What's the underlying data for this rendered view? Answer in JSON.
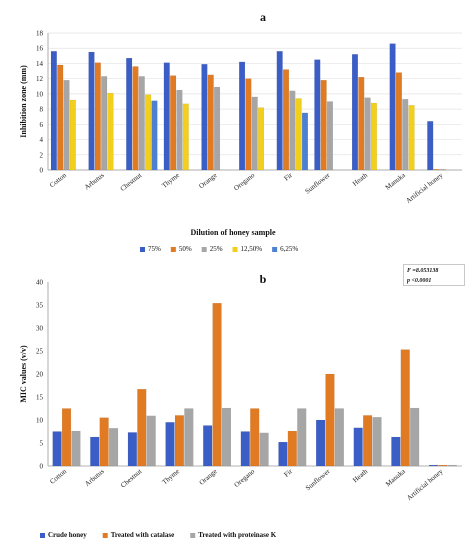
{
  "chart_data": [
    {
      "type": "bar",
      "panel_label": "a",
      "title": "",
      "xlabel": "Dilution of honey sample",
      "ylabel": "Inhibition zone (mm)",
      "ylim": [
        0,
        18
      ],
      "yticks": [
        0,
        2,
        4,
        6,
        8,
        10,
        12,
        14,
        16,
        18
      ],
      "grid": true,
      "legend_position": "bottom",
      "categories": [
        "Cotton",
        "Arbutus",
        "Chestnut",
        "Thyme",
        "Orange",
        "Oregano",
        "Fir",
        "Sunflower",
        "Heath",
        "Manuka",
        "Artificial honey"
      ],
      "series": [
        {
          "name": "75%",
          "color": "#3b5ec6",
          "values": [
            15.6,
            15.5,
            14.7,
            14.1,
            13.9,
            14.2,
            15.6,
            14.5,
            15.2,
            16.6,
            6.4
          ]
        },
        {
          "name": "50%",
          "color": "#e07b24",
          "values": [
            13.8,
            14.1,
            13.6,
            12.4,
            12.5,
            12.0,
            13.2,
            11.8,
            12.2,
            12.8,
            0.1
          ]
        },
        {
          "name": "25%",
          "color": "#a6a6a6",
          "values": [
            11.8,
            12.3,
            12.3,
            10.5,
            10.9,
            9.6,
            10.4,
            9.0,
            9.5,
            9.3,
            0.1
          ]
        },
        {
          "name": "12,50%",
          "color": "#f2cf1d",
          "values": [
            9.2,
            10.1,
            9.9,
            8.7,
            0,
            8.2,
            9.4,
            0,
            8.8,
            8.5,
            0
          ]
        },
        {
          "name": "6,25%",
          "color": "#4d7fd3",
          "values": [
            0,
            0,
            9.1,
            0,
            0,
            0,
            7.5,
            0,
            0,
            0,
            0
          ]
        }
      ]
    },
    {
      "type": "bar",
      "panel_label": "b",
      "title": "",
      "xlabel": "",
      "ylabel": "MIC values (v/v)",
      "ylim": [
        0,
        40
      ],
      "yticks": [
        0,
        5,
        10,
        15,
        20,
        25,
        30,
        35,
        40
      ],
      "grid": false,
      "legend_position": "bottom",
      "annotation_lines": [
        "F =8.053138",
        "p <0.0001"
      ],
      "categories": [
        "Cotton",
        "Arbutus",
        "Chestnut",
        "Thyme",
        "Orange",
        "Oregano",
        "Fir",
        "Sunflower",
        "Heath",
        "Manuka",
        "Artificial honey"
      ],
      "series": [
        {
          "name": "Crude honey",
          "color": "#3b5ec6",
          "values": [
            7.5,
            6.3,
            7.3,
            9.5,
            8.8,
            7.5,
            5.2,
            10.0,
            8.3,
            6.3,
            0.2
          ]
        },
        {
          "name": "Treated with catalase",
          "color": "#e07b24",
          "values": [
            12.5,
            10.5,
            16.7,
            11.0,
            35.4,
            12.5,
            7.6,
            20.0,
            11.0,
            25.3,
            0.2
          ]
        },
        {
          "name": "Treated with proteinase K",
          "color": "#a6a6a6",
          "values": [
            7.6,
            8.2,
            10.9,
            12.5,
            12.6,
            7.2,
            12.5,
            12.5,
            10.6,
            12.6,
            0.2
          ]
        }
      ]
    }
  ]
}
